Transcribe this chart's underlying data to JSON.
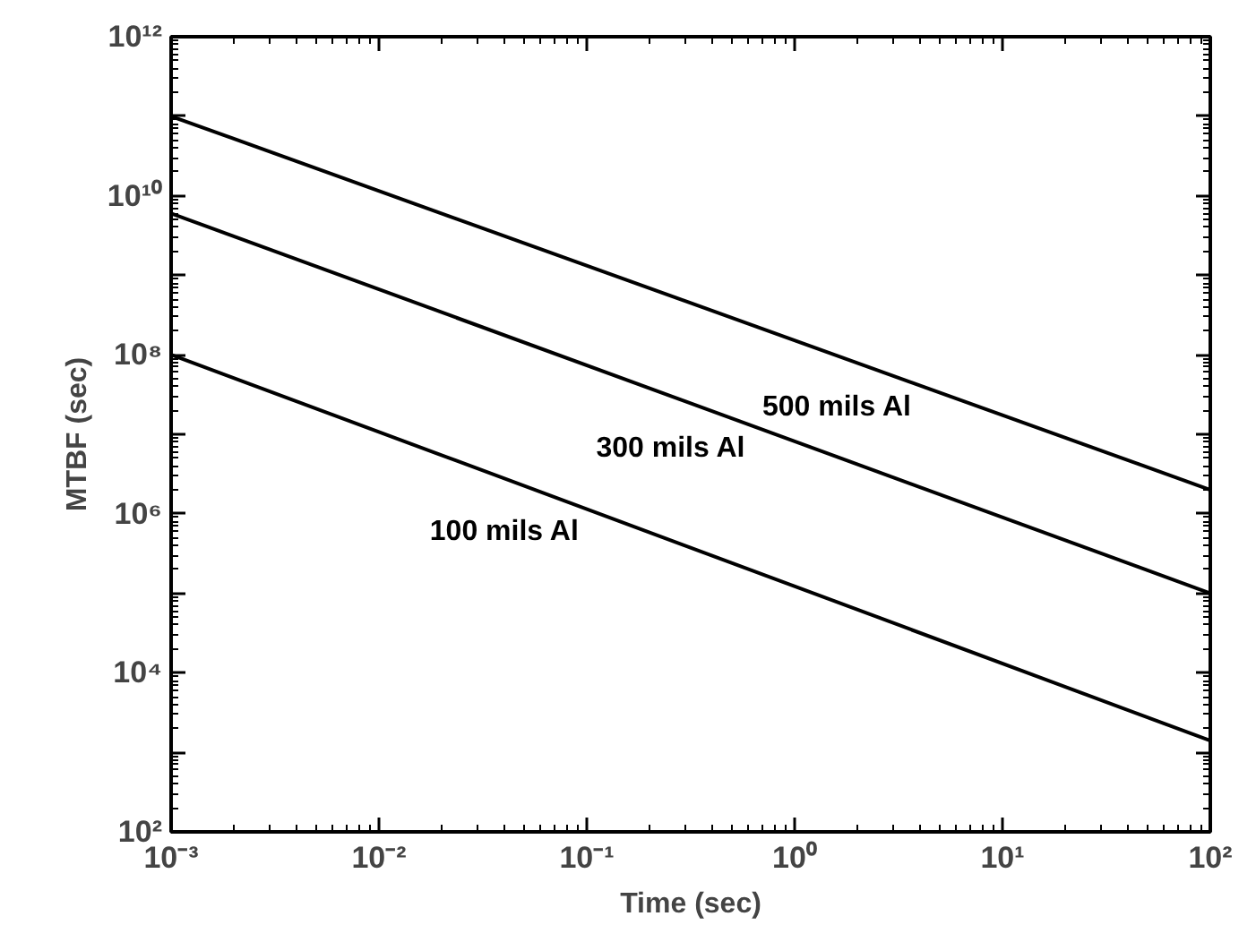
{
  "chart_data": {
    "type": "line",
    "xlabel": "Time (sec)",
    "ylabel": "MTBF (sec)",
    "log": "xy",
    "x": [
      0.001,
      100
    ],
    "series": [
      {
        "name": "500 mils Al",
        "color": "#000000",
        "values": [
          100000000000.0,
          2000000.0
        ]
      },
      {
        "name": "300 mils Al",
        "color": "#000000",
        "values": [
          6000000000.0,
          100000.0
        ]
      },
      {
        "name": "100 mils Al",
        "color": "#000000",
        "values": [
          100000000.0,
          1400
        ]
      }
    ],
    "xlim": [
      0.001,
      100
    ],
    "ylim": [
      100,
      1000000000000.0
    ],
    "xticks": [
      {
        "value": 0.001,
        "label": "10⁻³"
      },
      {
        "value": 0.01,
        "label": "10⁻²"
      },
      {
        "value": 0.1,
        "label": "10⁻¹"
      },
      {
        "value": 1,
        "label": "10⁰"
      },
      {
        "value": 10,
        "label": "10¹"
      },
      {
        "value": 100,
        "label": "10²"
      }
    ],
    "yticks": [
      {
        "value": 100,
        "label": "10²"
      },
      {
        "value": 1000,
        "label": null
      },
      {
        "value": 10000,
        "label": "10⁴"
      },
      {
        "value": 100000,
        "label": null
      },
      {
        "value": 1000000.0,
        "label": "10⁶"
      },
      {
        "value": 10000000.0,
        "label": null
      },
      {
        "value": 100000000.0,
        "label": "10⁸"
      },
      {
        "value": 1000000000.0,
        "label": null
      },
      {
        "value": 10000000000.0,
        "label": "10¹⁰"
      },
      {
        "value": 100000000000.0,
        "label": null
      },
      {
        "value": 1000000000000.0,
        "label": "10¹²"
      }
    ],
    "grid": false,
    "line_style": "solid",
    "marker": "none"
  }
}
